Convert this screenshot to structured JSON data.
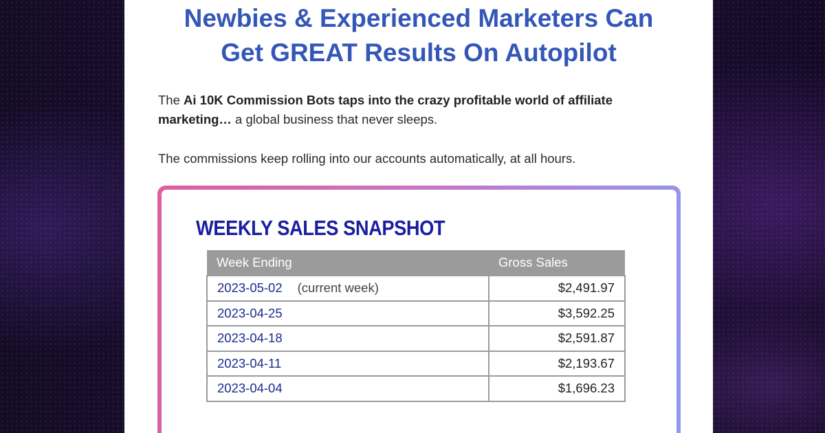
{
  "headline": {
    "line1": "Newbies & Experienced Marketers Can",
    "line2": "Get GREAT Results On Autopilot"
  },
  "intro": {
    "prefix": "The ",
    "bold": "Ai 10K Commission Bots taps into the crazy profitable world of affiliate marketing…",
    "suffix": " a global business that never sleeps."
  },
  "commissions_text": "The commissions keep rolling into our accounts automatically, at all hours.",
  "snapshot": {
    "title": "WEEKLY SALES SNAPSHOT",
    "columns": [
      "Week Ending",
      "Gross Sales"
    ],
    "rows": [
      {
        "week": "2023-05-02",
        "note": "(current week)",
        "gross": "$2,491.97"
      },
      {
        "week": "2023-04-25",
        "note": "",
        "gross": "$3,592.25"
      },
      {
        "week": "2023-04-18",
        "note": "",
        "gross": "$2,591.87"
      },
      {
        "week": "2023-04-11",
        "note": "",
        "gross": "$2,193.67"
      },
      {
        "week": "2023-04-04",
        "note": "",
        "gross": "$1,696.23"
      }
    ]
  },
  "colors": {
    "headline": "#3356b8",
    "snapshot_title": "#1a1da0",
    "card_gradient_start": "#de5e9e",
    "card_gradient_end": "#8e9af0",
    "table_header": "#9b9b9b"
  }
}
